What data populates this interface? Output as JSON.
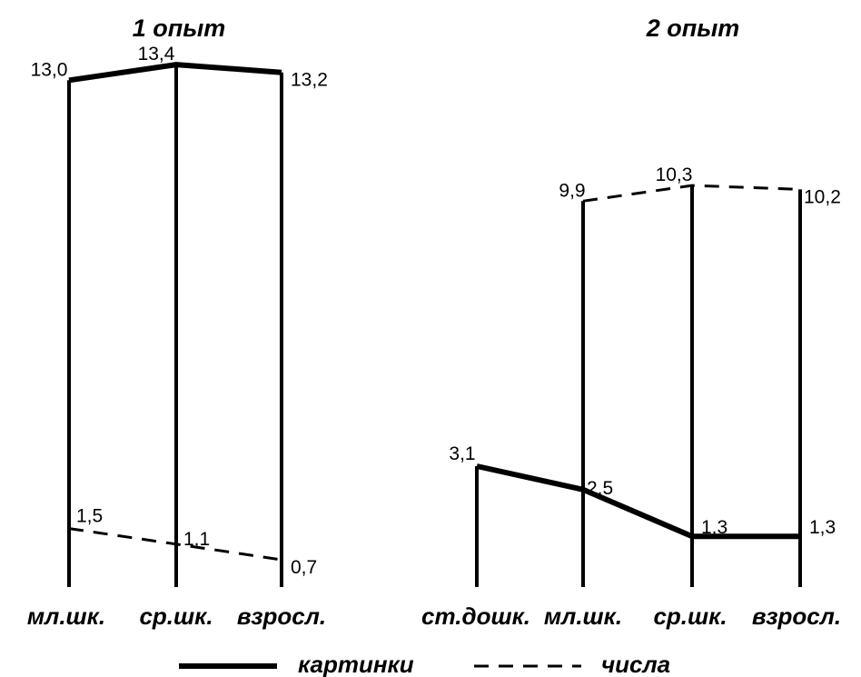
{
  "chart_data": [
    {
      "type": "line",
      "title": "1 опыт",
      "categories": [
        "мл.шк.",
        "ср.шк.",
        "взросл."
      ],
      "series": [
        {
          "name": "картинки",
          "style": "solid",
          "values": [
            13.0,
            13.4,
            13.2
          ],
          "labels": [
            "13,0",
            "13,4",
            "13,2"
          ]
        },
        {
          "name": "числа",
          "style": "dashed",
          "values": [
            1.5,
            1.1,
            0.7
          ],
          "labels": [
            "1,5",
            "1,1",
            "0,7"
          ]
        }
      ]
    },
    {
      "type": "line",
      "title": "2 опыт",
      "categories": [
        "ст.дошк.",
        "мл.шк.",
        "ср.шк.",
        "взросл."
      ],
      "series": [
        {
          "name": "картинки",
          "style": "solid",
          "values": [
            3.1,
            2.5,
            1.3,
            1.3
          ],
          "labels": [
            "3,1",
            "2,5",
            "1,3",
            "1,3"
          ]
        },
        {
          "name": "числа",
          "style": "dashed",
          "values": [
            null,
            9.9,
            10.3,
            10.2
          ],
          "labels": [
            "",
            "9,9",
            "10,3",
            "10,2"
          ]
        }
      ]
    }
  ],
  "legend": {
    "solid_label": "картинки",
    "dashed_label": "числа"
  },
  "colors": {
    "ink": "#000000",
    "background": "#ffffff"
  }
}
